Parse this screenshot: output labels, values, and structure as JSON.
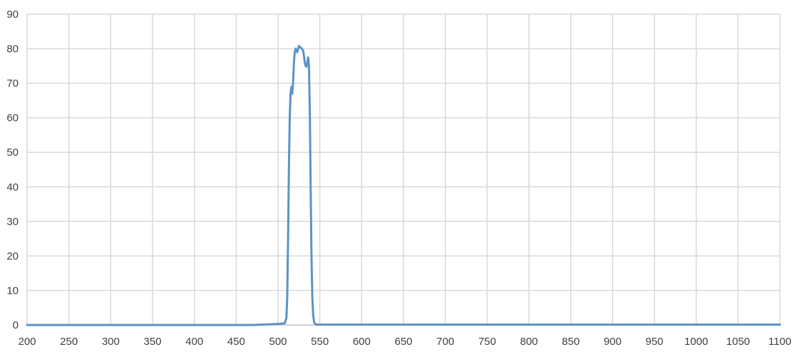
{
  "chart_data": {
    "type": "line",
    "title": "",
    "xlabel": "",
    "ylabel": "",
    "xlim": [
      200,
      1100
    ],
    "ylim": [
      0,
      90
    ],
    "x_ticks": [
      200,
      250,
      300,
      350,
      400,
      450,
      500,
      550,
      600,
      650,
      700,
      750,
      800,
      850,
      900,
      950,
      1000,
      1050,
      1100
    ],
    "y_ticks": [
      0,
      10,
      20,
      30,
      40,
      50,
      60,
      70,
      80,
      90
    ],
    "grid": true,
    "legend": "none",
    "series_color": "#5b93c8",
    "series": [
      {
        "x": [
          200,
          400,
          470,
          500,
          508,
          510,
          511,
          512,
          513,
          514,
          515,
          516,
          517,
          518,
          519,
          520,
          521,
          522,
          523,
          524,
          525,
          526,
          527,
          528,
          529,
          530,
          531,
          532,
          533,
          534,
          535,
          536,
          537,
          538,
          539,
          540,
          541,
          542,
          543,
          544,
          545,
          546,
          548,
          550,
          600,
          700,
          800,
          900,
          1000,
          1100
        ],
        "y": [
          0,
          0,
          0,
          0.3,
          0.5,
          2,
          8,
          25,
          45,
          60,
          67,
          69,
          67,
          70,
          76,
          79,
          80,
          79.5,
          79,
          80,
          80.8,
          80.6,
          80.3,
          80.2,
          79.8,
          79.5,
          78,
          76,
          75,
          74.8,
          76,
          77.5,
          75,
          62,
          40,
          20,
          8,
          3,
          1,
          0.4,
          0.2,
          0.1,
          0.1,
          0.1,
          0.1,
          0.1,
          0.1,
          0.1,
          0.1,
          0.1
        ]
      }
    ]
  }
}
